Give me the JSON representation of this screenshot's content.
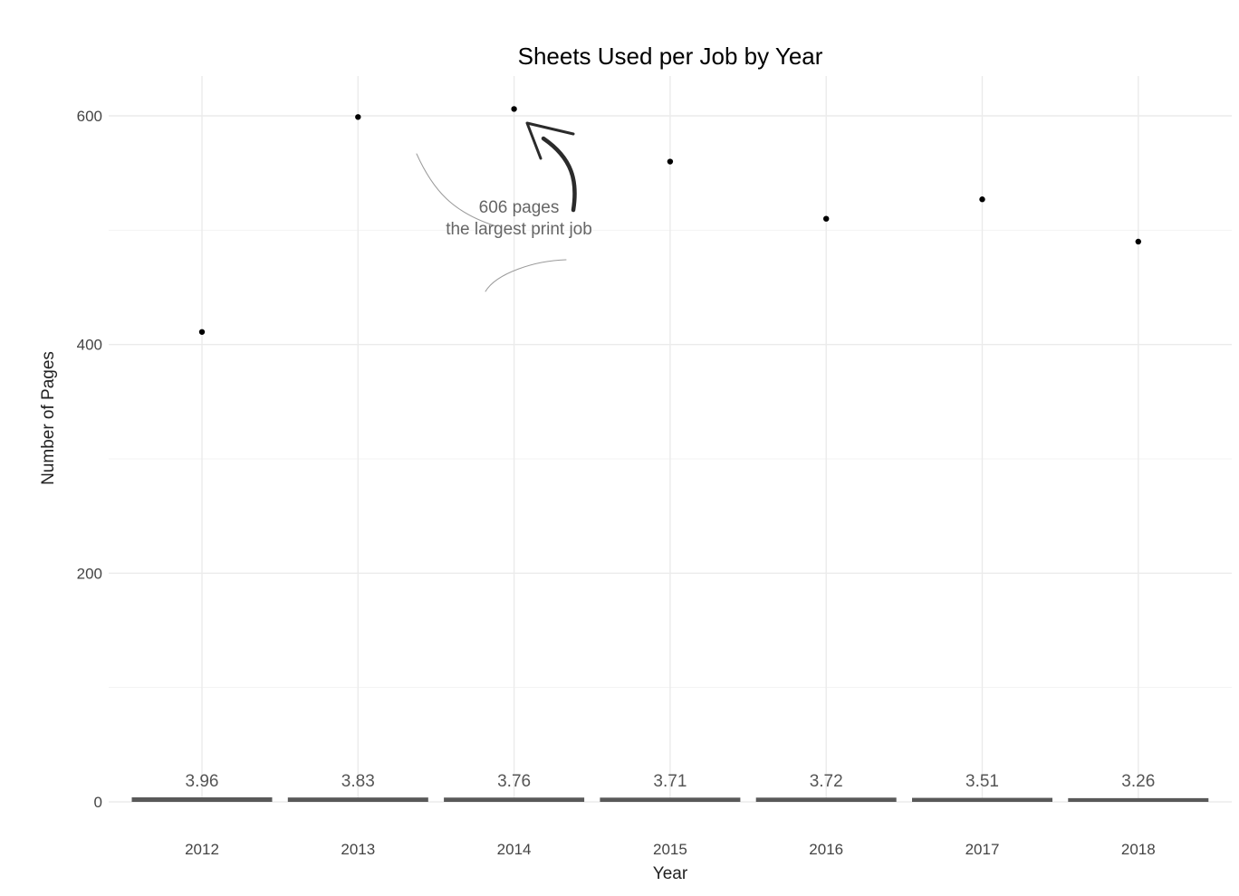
{
  "chart_data": {
    "type": "bar",
    "title": "Sheets Used per Job by Year",
    "xlabel": "Year",
    "ylabel": "Number of Pages",
    "categories": [
      "2012",
      "2013",
      "2014",
      "2015",
      "2016",
      "2017",
      "2018"
    ],
    "bar_values": [
      3.96,
      3.83,
      3.76,
      3.71,
      3.72,
      3.51,
      3.26
    ],
    "bar_labels": [
      "3.96",
      "3.83",
      "3.76",
      "3.71",
      "3.72",
      "3.51",
      "3.26"
    ],
    "point_values": [
      411,
      599,
      606,
      560,
      510,
      527,
      490
    ],
    "ylim": [
      0,
      640
    ],
    "yticks": [
      0,
      200,
      400,
      600
    ],
    "grid": true,
    "annotation": {
      "category": "2014",
      "value": 606,
      "line1": "606 pages",
      "line2": "the largest print job"
    },
    "colors": {
      "bar": "#595959",
      "point": "#000000",
      "arrow": "#2b2b2b"
    }
  }
}
